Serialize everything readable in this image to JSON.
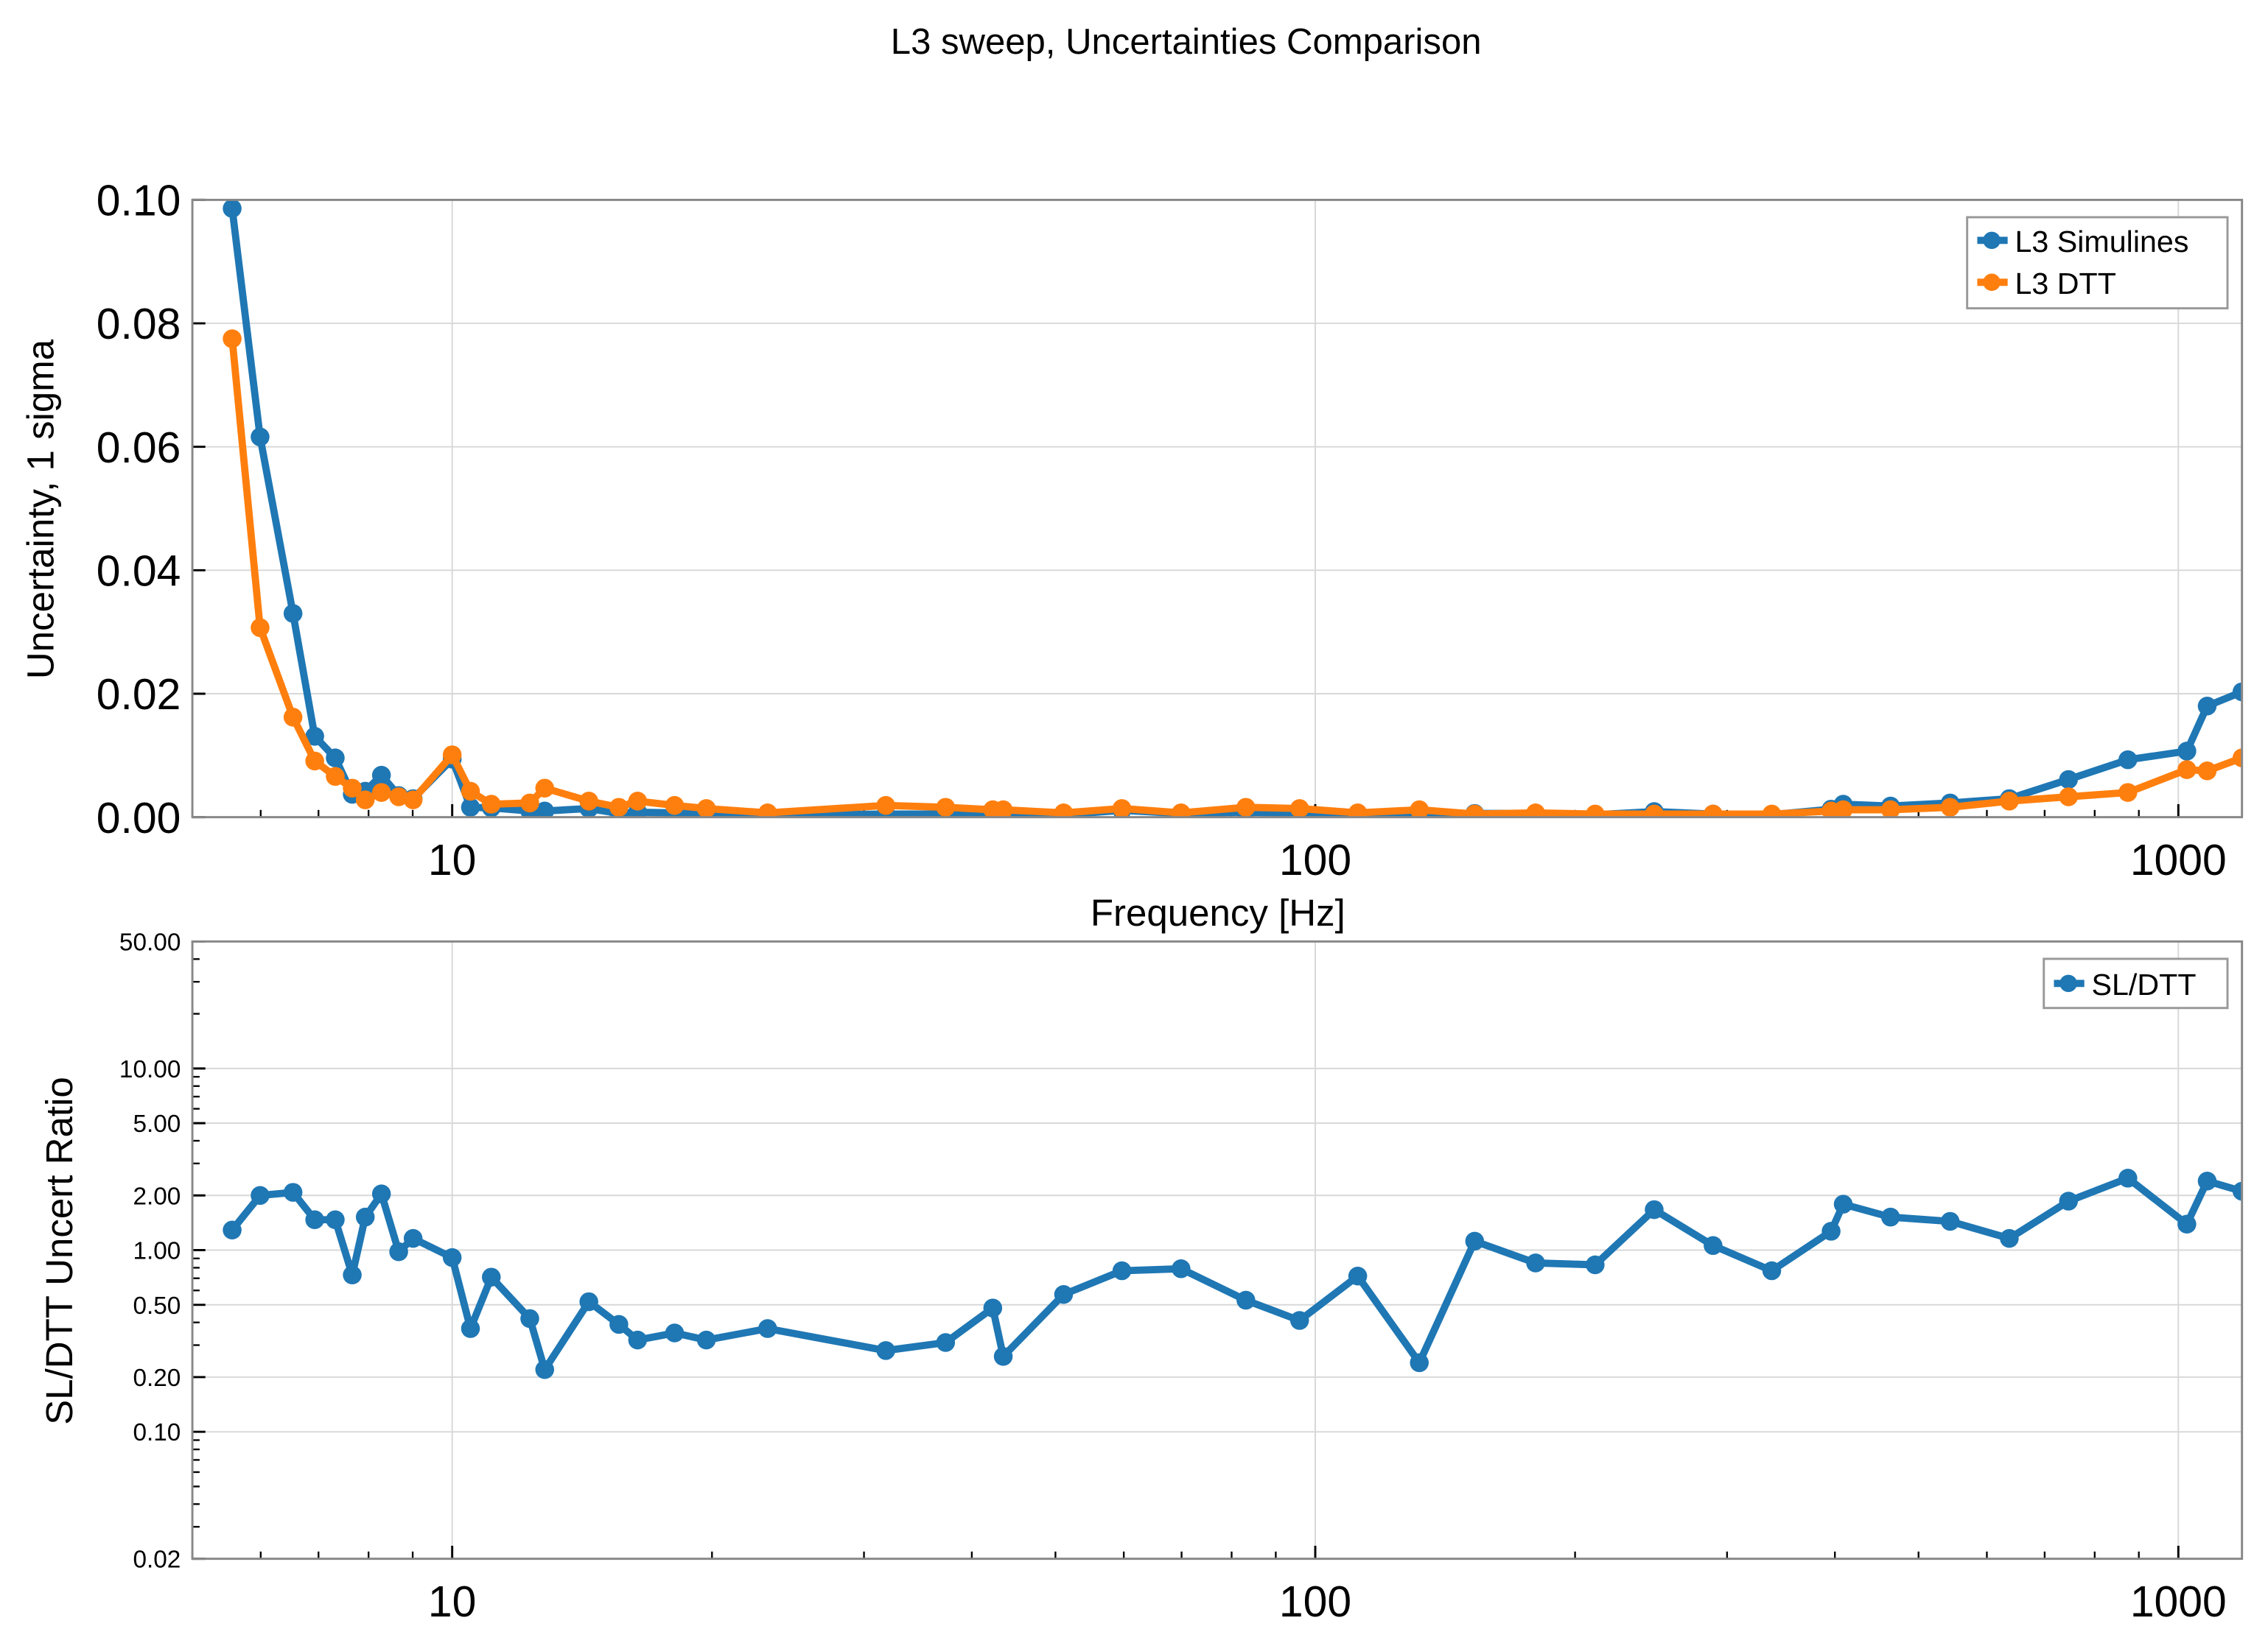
{
  "title": "L3 sweep, Uncertainties Comparison",
  "colors": {
    "simulines": "#1f77b4",
    "dtt": "#ff7f0e",
    "grid": "#d8d8d8"
  },
  "chart_data": [
    {
      "type": "line",
      "xlabel": "Frequency [Hz]",
      "ylabel": "Uncertainty, 1 sigma",
      "xscale": "log",
      "xlim": [
        5.0,
        1185
      ],
      "ylim": [
        0,
        0.1
      ],
      "xticks": [
        10,
        100,
        1000
      ],
      "xtick_labels": [
        "10",
        "100",
        "1000"
      ],
      "yticks": [
        0,
        0.02,
        0.04,
        0.06,
        0.08,
        0.1
      ],
      "ytick_labels": [
        "0.00",
        "0.02",
        "0.04",
        "0.06",
        "0.08",
        "0.10"
      ],
      "grid": true,
      "legend": "top-right",
      "x": [
        5.56,
        5.99,
        6.54,
        6.93,
        7.32,
        7.66,
        7.93,
        8.28,
        8.67,
        9.01,
        10,
        10.5,
        11.1,
        12.3,
        12.8,
        14.4,
        15.6,
        16.4,
        18.1,
        19.7,
        23.2,
        31.8,
        37.3,
        42.3,
        43.5,
        51.1,
        59.7,
        69.9,
        83.1,
        95.9,
        112,
        132,
        153,
        180,
        211,
        247,
        289,
        338,
        396,
        409,
        464,
        544,
        637,
        746,
        874,
        1023,
        1080,
        1185
      ],
      "series": [
        {
          "name": "L3 Simulines",
          "color": "#1f77b4",
          "values": [
            0.0986,
            0.0616,
            0.033,
            0.0131,
            0.0096,
            0.0037,
            0.0042,
            0.0068,
            0.0035,
            0.003,
            0.0094,
            0.0016,
            0.0015,
            0.001,
            0.001,
            0.0014,
            0.0006,
            0.0008,
            0.0007,
            0.0004,
            0.0003,
            0.0005,
            0.0005,
            0.0006,
            0.0003,
            0.0004,
            0.0011,
            0.0006,
            0.0008,
            0.0006,
            0.0005,
            0.0003,
            0.0006,
            0.0006,
            0.0004,
            0.0009,
            0.0005,
            0.0004,
            0.0013,
            0.0021,
            0.0018,
            0.0023,
            0.003,
            0.0061,
            0.0093,
            0.0107,
            0.018,
            0.0203
          ]
        },
        {
          "name": "L3 DTT",
          "color": "#ff7f0e",
          "values": [
            0.0775,
            0.0307,
            0.0162,
            0.0091,
            0.0066,
            0.0047,
            0.0028,
            0.004,
            0.0033,
            0.0028,
            0.0101,
            0.0042,
            0.0021,
            0.0023,
            0.0047,
            0.0026,
            0.0016,
            0.0026,
            0.0019,
            0.0014,
            0.0007,
            0.0019,
            0.0016,
            0.0012,
            0.0012,
            0.0007,
            0.0014,
            0.0007,
            0.0016,
            0.0014,
            0.0007,
            0.0012,
            0.0005,
            0.0007,
            0.0005,
            0.0005,
            0.0005,
            0.0005,
            0.001,
            0.0012,
            0.0012,
            0.0016,
            0.0026,
            0.0033,
            0.004,
            0.0077,
            0.0075,
            0.0096
          ]
        }
      ]
    },
    {
      "type": "line",
      "xlabel": "",
      "ylabel": "SL/DTT Uncert Ratio",
      "xscale": "log",
      "yscale": "log",
      "xlim": [
        5.0,
        1185
      ],
      "ylim": [
        0.02,
        50
      ],
      "xticks": [
        10,
        100,
        1000
      ],
      "xtick_labels": [
        "10",
        "100",
        "1000"
      ],
      "yticks": [
        0.02,
        0.1,
        0.2,
        0.5,
        1,
        2,
        5,
        10,
        50
      ],
      "ytick_labels": [
        "0.02",
        "0.10",
        "0.20",
        "0.50",
        "1.00",
        "2.00",
        "5.00",
        "10.00",
        "50.00"
      ],
      "grid": true,
      "legend": "top-right",
      "x": [
        5.56,
        5.99,
        6.54,
        6.93,
        7.32,
        7.66,
        7.93,
        8.28,
        8.67,
        9.01,
        10,
        10.5,
        11.1,
        12.3,
        12.8,
        14.4,
        15.6,
        16.4,
        18.1,
        19.7,
        23.2,
        31.8,
        37.3,
        42.3,
        43.5,
        51.1,
        59.7,
        69.9,
        83.1,
        95.9,
        112,
        132,
        153,
        180,
        211,
        247,
        289,
        338,
        396,
        409,
        464,
        544,
        637,
        746,
        874,
        1023,
        1080,
        1185
      ],
      "series": [
        {
          "name": "SL/DTT",
          "color": "#1f77b4",
          "values": [
            1.29,
            2.0,
            2.08,
            1.47,
            1.47,
            0.73,
            1.52,
            2.04,
            0.98,
            1.16,
            0.91,
            0.37,
            0.71,
            0.42,
            0.22,
            0.52,
            0.39,
            0.32,
            0.35,
            0.32,
            0.37,
            0.28,
            0.31,
            0.48,
            0.26,
            0.57,
            0.77,
            0.79,
            0.53,
            0.41,
            0.72,
            0.24,
            1.12,
            0.85,
            0.83,
            1.67,
            1.06,
            0.77,
            1.27,
            1.79,
            1.52,
            1.44,
            1.16,
            1.86,
            2.49,
            1.39,
            2.4,
            2.11
          ]
        }
      ]
    }
  ]
}
